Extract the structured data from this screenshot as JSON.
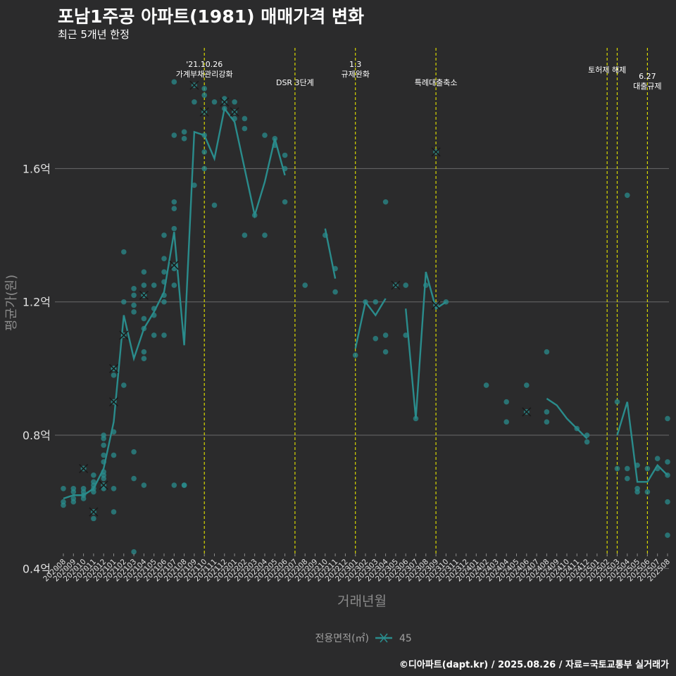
{
  "header": {
    "title": "포남1주공 아파트(1981) 매매가격 변화",
    "subtitle": "최근 5개년 한정"
  },
  "footer": {
    "caption": "©디아파트(dapt.kr) / 2025.08.26 / 자료=국토교통부 실거래가"
  },
  "colors": {
    "background": "#2b2b2c",
    "series": "#2a8c8c",
    "event_line": "#d8d800",
    "grid": "#6a6a6a"
  },
  "chart_data": {
    "type": "scatter",
    "xlabel": "거래년월",
    "ylabel": "평균가(원)",
    "categories": [
      "202008",
      "202009",
      "202010",
      "202011",
      "202012",
      "202101",
      "202102",
      "202103",
      "202104",
      "202105",
      "202106",
      "202107",
      "202108",
      "202109",
      "202110",
      "202111",
      "202112",
      "202201",
      "202202",
      "202203",
      "202204",
      "202205",
      "202206",
      "202207",
      "202208",
      "202209",
      "202210",
      "202211",
      "202212",
      "202301",
      "202302",
      "202303",
      "202304",
      "202305",
      "202306",
      "202307",
      "202308",
      "202309",
      "202310",
      "202311",
      "202312",
      "202401",
      "202402",
      "202403",
      "202404",
      "202405",
      "202406",
      "202407",
      "202408",
      "202409",
      "202410",
      "202411",
      "202412",
      "202501",
      "202502",
      "202503",
      "202504",
      "202505",
      "202506",
      "202507",
      "202508"
    ],
    "y_ticks": [
      {
        "value": 0.4,
        "label": "0.4억"
      },
      {
        "value": 0.8,
        "label": "0.8억"
      },
      {
        "value": 1.2,
        "label": "1.2억"
      },
      {
        "value": 1.6,
        "label": "1.6억"
      }
    ],
    "ylim": [
      0.38,
      1.78
    ],
    "grid": true,
    "legend": {
      "title": "전용면적(㎡)",
      "placement": "bottom",
      "entries": [
        "45"
      ]
    },
    "series": [
      {
        "name": "45",
        "line": [
          {
            "x": "202008",
            "y": 0.61
          },
          {
            "x": "202009",
            "y": 0.62
          },
          {
            "x": "202010",
            "y": 0.62
          },
          {
            "x": "202011",
            "y": 0.64
          },
          {
            "x": "202012",
            "y": 0.7
          },
          {
            "x": "202101",
            "y": 0.84
          },
          {
            "x": "202102",
            "y": 1.16
          },
          {
            "x": "202103",
            "y": 1.03
          },
          {
            "x": "202104",
            "y": 1.12
          },
          {
            "x": "202105",
            "y": 1.17
          },
          {
            "x": "202106",
            "y": 1.23
          },
          {
            "x": "202107",
            "y": 1.41
          },
          {
            "x": "202108",
            "y": 1.07
          },
          {
            "x": "202109",
            "y": 1.71
          },
          {
            "x": "202110",
            "y": 1.7
          },
          {
            "x": "202111",
            "y": 1.63
          },
          {
            "x": "202112",
            "y": 1.78
          },
          {
            "x": "202201",
            "y": 1.74
          },
          {
            "x": "202202",
            "y": 1.6
          },
          {
            "x": "202203",
            "y": 1.46
          },
          {
            "x": "202204",
            "y": 1.56
          },
          {
            "x": "202205",
            "y": 1.69
          },
          {
            "x": "202206",
            "y": 1.58
          },
          {
            "x": "202210",
            "y": 1.42
          },
          {
            "x": "202211",
            "y": 1.27
          },
          {
            "x": "202301",
            "y": 1.06
          },
          {
            "x": "202302",
            "y": 1.2
          },
          {
            "x": "202303",
            "y": 1.16
          },
          {
            "x": "202304",
            "y": 1.21
          },
          {
            "x": "202306",
            "y": 1.18
          },
          {
            "x": "202307",
            "y": 0.85
          },
          {
            "x": "202308",
            "y": 1.29
          },
          {
            "x": "202309",
            "y": 1.18
          },
          {
            "x": "202310",
            "y": 1.2
          },
          {
            "x": "202408",
            "y": 0.91
          },
          {
            "x": "202409",
            "y": 0.89
          },
          {
            "x": "202410",
            "y": 0.85
          },
          {
            "x": "202411",
            "y": 0.82
          },
          {
            "x": "202412",
            "y": 0.79
          },
          {
            "x": "202503",
            "y": 0.8
          },
          {
            "x": "202504",
            "y": 0.9
          },
          {
            "x": "202505",
            "y": 0.66
          },
          {
            "x": "202506",
            "y": 0.66
          },
          {
            "x": "202507",
            "y": 0.71
          },
          {
            "x": "202508",
            "y": 0.68
          }
        ],
        "points": [
          {
            "x": "202008",
            "y": 0.64
          },
          {
            "x": "202008",
            "y": 0.6
          },
          {
            "x": "202008",
            "y": 0.59
          },
          {
            "x": "202009",
            "y": 0.64
          },
          {
            "x": "202009",
            "y": 0.63
          },
          {
            "x": "202009",
            "y": 0.61
          },
          {
            "x": "202009",
            "y": 0.6
          },
          {
            "x": "202010",
            "y": 0.64
          },
          {
            "x": "202010",
            "y": 0.63
          },
          {
            "x": "202010",
            "y": 0.62
          },
          {
            "x": "202010",
            "y": 0.61
          },
          {
            "x": "202011",
            "y": 0.68
          },
          {
            "x": "202011",
            "y": 0.66
          },
          {
            "x": "202011",
            "y": 0.65
          },
          {
            "x": "202011",
            "y": 0.64
          },
          {
            "x": "202011",
            "y": 0.63
          },
          {
            "x": "202011",
            "y": 0.55
          },
          {
            "x": "202012",
            "y": 0.8
          },
          {
            "x": "202012",
            "y": 0.79
          },
          {
            "x": "202012",
            "y": 0.77
          },
          {
            "x": "202012",
            "y": 0.74
          },
          {
            "x": "202012",
            "y": 0.72
          },
          {
            "x": "202012",
            "y": 0.69
          },
          {
            "x": "202012",
            "y": 0.68
          },
          {
            "x": "202012",
            "y": 0.67
          },
          {
            "x": "202012",
            "y": 0.64
          },
          {
            "x": "202101",
            "y": 0.81
          },
          {
            "x": "202101",
            "y": 0.74
          },
          {
            "x": "202101",
            "y": 0.64
          },
          {
            "x": "202101",
            "y": 0.57
          },
          {
            "x": "202101",
            "y": 1.0
          },
          {
            "x": "202101",
            "y": 0.98
          },
          {
            "x": "202102",
            "y": 1.35
          },
          {
            "x": "202102",
            "y": 1.2
          },
          {
            "x": "202102",
            "y": 0.95
          },
          {
            "x": "202103",
            "y": 1.24
          },
          {
            "x": "202103",
            "y": 1.22
          },
          {
            "x": "202103",
            "y": 1.19
          },
          {
            "x": "202103",
            "y": 1.17
          },
          {
            "x": "202103",
            "y": 0.75
          },
          {
            "x": "202103",
            "y": 0.67
          },
          {
            "x": "202103",
            "y": 0.45
          },
          {
            "x": "202104",
            "y": 1.29
          },
          {
            "x": "202104",
            "y": 1.25
          },
          {
            "x": "202104",
            "y": 1.22
          },
          {
            "x": "202104",
            "y": 1.15
          },
          {
            "x": "202104",
            "y": 1.12
          },
          {
            "x": "202104",
            "y": 1.05
          },
          {
            "x": "202104",
            "y": 1.03
          },
          {
            "x": "202104",
            "y": 0.65
          },
          {
            "x": "202105",
            "y": 1.25
          },
          {
            "x": "202105",
            "y": 1.18
          },
          {
            "x": "202105",
            "y": 1.16
          },
          {
            "x": "202105",
            "y": 1.1
          },
          {
            "x": "202106",
            "y": 1.4
          },
          {
            "x": "202106",
            "y": 1.33
          },
          {
            "x": "202106",
            "y": 1.29
          },
          {
            "x": "202106",
            "y": 1.26
          },
          {
            "x": "202106",
            "y": 1.22
          },
          {
            "x": "202106",
            "y": 1.2
          },
          {
            "x": "202106",
            "y": 1.1
          },
          {
            "x": "202107",
            "y": 1.86
          },
          {
            "x": "202107",
            "y": 1.7
          },
          {
            "x": "202107",
            "y": 1.5
          },
          {
            "x": "202107",
            "y": 1.48
          },
          {
            "x": "202107",
            "y": 1.42
          },
          {
            "x": "202107",
            "y": 1.3
          },
          {
            "x": "202107",
            "y": 1.25
          },
          {
            "x": "202107",
            "y": 0.65
          },
          {
            "x": "202108",
            "y": 1.71
          },
          {
            "x": "202108",
            "y": 1.69
          },
          {
            "x": "202108",
            "y": 0.65
          },
          {
            "x": "202108",
            "y": 0.65
          },
          {
            "x": "202109",
            "y": 1.8
          },
          {
            "x": "202109",
            "y": 1.55
          },
          {
            "x": "202110",
            "y": 1.84
          },
          {
            "x": "202110",
            "y": 1.82
          },
          {
            "x": "202110",
            "y": 1.7
          },
          {
            "x": "202110",
            "y": 1.65
          },
          {
            "x": "202110",
            "y": 1.6
          },
          {
            "x": "202111",
            "y": 1.8
          },
          {
            "x": "202111",
            "y": 1.49
          },
          {
            "x": "202112",
            "y": 1.81
          },
          {
            "x": "202112",
            "y": 1.78
          },
          {
            "x": "202201",
            "y": 1.8
          },
          {
            "x": "202201",
            "y": 1.75
          },
          {
            "x": "202202",
            "y": 1.75
          },
          {
            "x": "202202",
            "y": 1.72
          },
          {
            "x": "202202",
            "y": 1.4
          },
          {
            "x": "202203",
            "y": 1.46
          },
          {
            "x": "202204",
            "y": 1.7
          },
          {
            "x": "202204",
            "y": 1.4
          },
          {
            "x": "202205",
            "y": 1.69
          },
          {
            "x": "202205",
            "y": 1.67
          },
          {
            "x": "202206",
            "y": 1.64
          },
          {
            "x": "202206",
            "y": 1.6
          },
          {
            "x": "202206",
            "y": 1.5
          },
          {
            "x": "202208",
            "y": 1.25
          },
          {
            "x": "202210",
            "y": 1.4
          },
          {
            "x": "202211",
            "y": 1.3
          },
          {
            "x": "202211",
            "y": 1.23
          },
          {
            "x": "202301",
            "y": 1.04
          },
          {
            "x": "202302",
            "y": 1.2
          },
          {
            "x": "202303",
            "y": 1.2
          },
          {
            "x": "202303",
            "y": 1.09
          },
          {
            "x": "202304",
            "y": 1.5
          },
          {
            "x": "202304",
            "y": 1.1
          },
          {
            "x": "202304",
            "y": 1.05
          },
          {
            "x": "202306",
            "y": 1.25
          },
          {
            "x": "202306",
            "y": 1.1
          },
          {
            "x": "202307",
            "y": 0.85
          },
          {
            "x": "202308",
            "y": 1.25
          },
          {
            "x": "202310",
            "y": 1.2
          },
          {
            "x": "202402",
            "y": 0.95
          },
          {
            "x": "202404",
            "y": 0.9
          },
          {
            "x": "202404",
            "y": 0.84
          },
          {
            "x": "202406",
            "y": 0.95
          },
          {
            "x": "202408",
            "y": 1.05
          },
          {
            "x": "202408",
            "y": 0.87
          },
          {
            "x": "202408",
            "y": 0.84
          },
          {
            "x": "202411",
            "y": 0.82
          },
          {
            "x": "202412",
            "y": 0.8
          },
          {
            "x": "202412",
            "y": 0.78
          },
          {
            "x": "202503",
            "y": 0.9
          },
          {
            "x": "202503",
            "y": 0.7
          },
          {
            "x": "202504",
            "y": 1.52
          },
          {
            "x": "202504",
            "y": 0.7
          },
          {
            "x": "202504",
            "y": 0.67
          },
          {
            "x": "202505",
            "y": 0.71
          },
          {
            "x": "202505",
            "y": 0.64
          },
          {
            "x": "202505",
            "y": 0.63
          },
          {
            "x": "202506",
            "y": 0.7
          },
          {
            "x": "202506",
            "y": 0.63
          },
          {
            "x": "202507",
            "y": 0.73
          },
          {
            "x": "202507",
            "y": 0.7
          },
          {
            "x": "202508",
            "y": 0.85
          },
          {
            "x": "202508",
            "y": 0.72
          },
          {
            "x": "202508",
            "y": 0.68
          },
          {
            "x": "202508",
            "y": 0.6
          },
          {
            "x": "202508",
            "y": 0.5
          }
        ],
        "cross_points": [
          {
            "x": "202010",
            "y": 0.7
          },
          {
            "x": "202011",
            "y": 0.57
          },
          {
            "x": "202012",
            "y": 0.65
          },
          {
            "x": "202101",
            "y": 1.0
          },
          {
            "x": "202101",
            "y": 0.9
          },
          {
            "x": "202102",
            "y": 1.1
          },
          {
            "x": "202104",
            "y": 1.22
          },
          {
            "x": "202107",
            "y": 1.31
          },
          {
            "x": "202109",
            "y": 1.85
          },
          {
            "x": "202110",
            "y": 1.77
          },
          {
            "x": "202112",
            "y": 1.8
          },
          {
            "x": "202201",
            "y": 1.77
          },
          {
            "x": "202305",
            "y": 1.25
          },
          {
            "x": "202309",
            "y": 1.65
          },
          {
            "x": "202309",
            "y": 1.19
          },
          {
            "x": "202406",
            "y": 0.87
          }
        ]
      }
    ],
    "events": [
      {
        "x": "202110",
        "label": "'21.10.26\n가계부채관리강화",
        "level": 1
      },
      {
        "x": "202207",
        "label": "DSR 3단계",
        "level": 2
      },
      {
        "x": "202301",
        "label": "1.3\n규제완화",
        "level": 1
      },
      {
        "x": "202309",
        "label": "특례대출축소",
        "level": 2
      },
      {
        "x": "202502",
        "label": "토허제 해제",
        "level": 1
      },
      {
        "x": "202503",
        "label": "",
        "level": 1
      },
      {
        "x": "202506",
        "label": "6.27\n대출규제",
        "level": 2
      }
    ]
  }
}
